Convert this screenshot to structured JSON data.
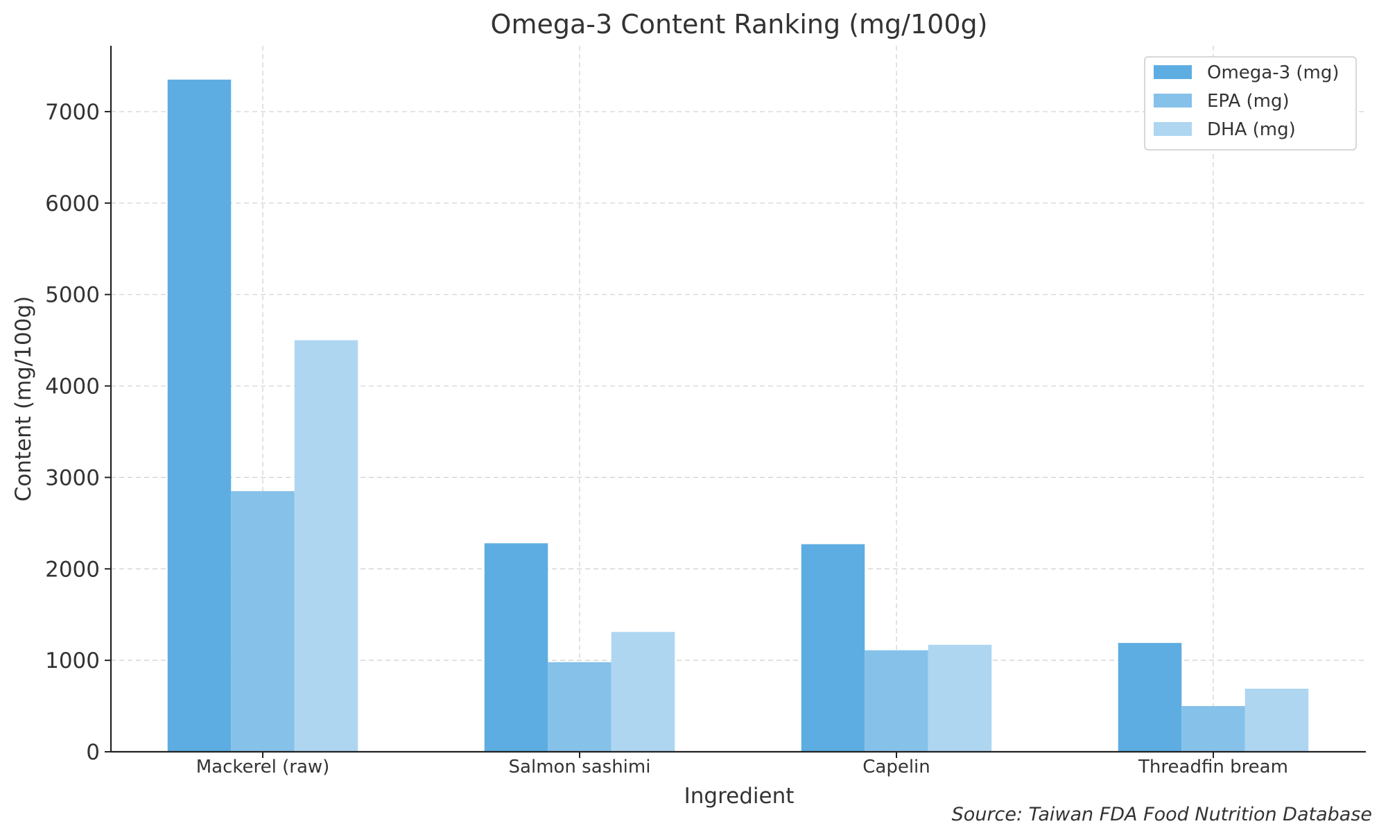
{
  "chart_data": {
    "type": "bar",
    "title": "Omega-3 Content Ranking (mg/100g)",
    "xlabel": "Ingredient",
    "ylabel": "Content (mg/100g)",
    "categories": [
      "Mackerel (raw)",
      "Salmon sashimi",
      "Capelin",
      "Threadfin bream"
    ],
    "series": [
      {
        "name": "Omega-3 (mg)",
        "color": "#5dade2",
        "values": [
          7350,
          2280,
          2270,
          1190
        ]
      },
      {
        "name": "EPA (mg)",
        "color": "#85c1e9",
        "values": [
          2850,
          980,
          1110,
          500
        ]
      },
      {
        "name": "DHA (mg)",
        "color": "#aed6f1",
        "values": [
          4500,
          1310,
          1170,
          690
        ]
      }
    ],
    "ylim": [
      0,
      7720
    ],
    "yticks": [
      0,
      1000,
      2000,
      3000,
      4000,
      5000,
      6000,
      7000
    ],
    "grid": true,
    "legend_position": "top-right",
    "source_note": "Source: Taiwan FDA Food Nutrition Database"
  }
}
